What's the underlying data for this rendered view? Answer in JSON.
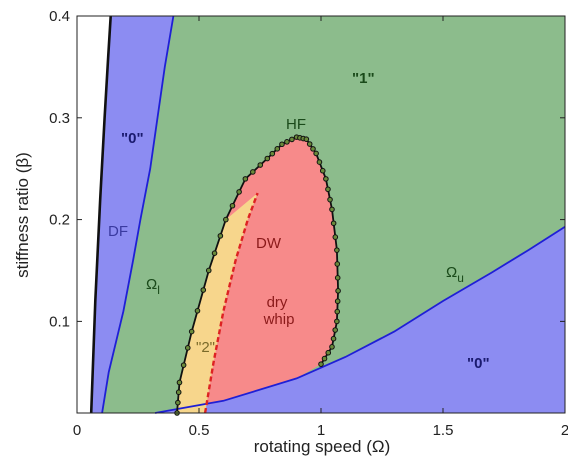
{
  "chart_data": {
    "type": "area",
    "xlabel": "rotating speed (Ω)",
    "ylabel": "stiffness ratio (β)",
    "xlim": [
      0,
      2
    ],
    "ylim": [
      0.01,
      0.4
    ],
    "x_ticks": [
      "0",
      "0.5",
      "1",
      "1.5",
      "2"
    ],
    "y_ticks": [
      "0.1",
      "0.2",
      "0.3",
      "0.4"
    ],
    "x_tick_values": [
      0,
      0.5,
      1,
      1.5,
      2
    ],
    "y_tick_values": [
      0.1,
      0.2,
      0.3,
      0.4
    ],
    "colors": {
      "region_0": "#8c8cf2",
      "region_1": "#8cbc8c",
      "region_2": "#f7d68c",
      "dry_whip": "#f78a8a",
      "boundary_blue": "#1f1fd6",
      "boundary_black": "#111111",
      "dw_line": "#dd2222",
      "text_dark_blue": "#1a1a6e",
      "text_dark_green": "#1a4a1a",
      "text_dark_red": "#8b1a1a",
      "text_gold": "#7a6a2a"
    },
    "curves": {
      "df": [
        [
          0.058,
          0.01
        ],
        [
          0.075,
          0.12
        ],
        [
          0.095,
          0.22
        ],
        [
          0.113,
          0.3
        ],
        [
          0.128,
          0.36
        ],
        [
          0.138,
          0.4
        ]
      ],
      "omega_l": [
        [
          0.103,
          0.01
        ],
        [
          0.13,
          0.05
        ],
        [
          0.19,
          0.11
        ],
        [
          0.23,
          0.16
        ],
        [
          0.26,
          0.2
        ],
        [
          0.3,
          0.25
        ],
        [
          0.33,
          0.3
        ],
        [
          0.36,
          0.35
        ],
        [
          0.395,
          0.4
        ]
      ],
      "omega_u": [
        [
          0.32,
          0.01
        ],
        [
          0.6,
          0.022
        ],
        [
          0.9,
          0.044
        ],
        [
          1.1,
          0.065
        ],
        [
          1.3,
          0.09
        ],
        [
          1.5,
          0.12
        ],
        [
          1.7,
          0.148
        ],
        [
          1.85,
          0.17
        ],
        [
          2.0,
          0.193
        ]
      ],
      "instability_boundary": [
        [
          0.41,
          0.01
        ],
        [
          0.42,
          0.04
        ],
        [
          0.47,
          0.09
        ],
        [
          0.54,
          0.15
        ],
        [
          0.61,
          0.2
        ],
        [
          0.69,
          0.24
        ],
        [
          0.78,
          0.26
        ],
        [
          0.84,
          0.274
        ],
        [
          0.9,
          0.281
        ],
        [
          0.94,
          0.279
        ],
        [
          0.98,
          0.265
        ],
        [
          1.02,
          0.24
        ],
        [
          1.045,
          0.21
        ],
        [
          1.065,
          0.17
        ],
        [
          1.07,
          0.13
        ],
        [
          1.065,
          0.1
        ],
        [
          1.045,
          0.075
        ],
        [
          1.0,
          0.058
        ]
      ],
      "dw": [
        [
          0.525,
          0.01
        ],
        [
          0.56,
          0.06
        ],
        [
          0.6,
          0.11
        ],
        [
          0.65,
          0.16
        ],
        [
          0.7,
          0.2
        ],
        [
          0.74,
          0.226
        ]
      ]
    },
    "annotations": {
      "zero_upper_left": "\"0\"",
      "zero_lower_right": "\"0\"",
      "one": "\"1\"",
      "two": "\"2\"",
      "df": "DF",
      "dw": "DW",
      "hf": "HF",
      "omega": "Ω",
      "sub_l": "l",
      "sub_u": "u",
      "dry": "dry",
      "whip": "whip"
    }
  }
}
